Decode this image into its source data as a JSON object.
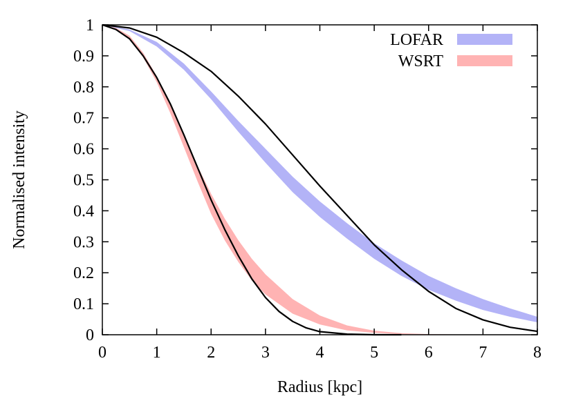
{
  "chart_data": {
    "type": "area",
    "xlabel": "Radius [kpc]",
    "ylabel": "Normalised intensity",
    "xlim": [
      0,
      8
    ],
    "ylim": [
      0,
      1
    ],
    "x_ticks": [
      "0",
      "1",
      "2",
      "3",
      "4",
      "5",
      "6",
      "7",
      "8"
    ],
    "y_ticks": [
      "0",
      "0.1",
      "0.2",
      "0.3",
      "0.4",
      "0.5",
      "0.6",
      "0.7",
      "0.8",
      "0.9",
      "1"
    ],
    "grid": false,
    "legend_position": "top-right",
    "series": [
      {
        "name": "LOFAR",
        "kind": "band",
        "color": "#b3b3f7",
        "x": [
          0,
          0.5,
          1,
          1.5,
          2,
          2.5,
          3,
          3.5,
          4,
          4.5,
          5,
          5.5,
          6,
          6.5,
          7,
          7.5,
          8
        ],
        "lower": [
          1,
          0.98,
          0.93,
          0.855,
          0.76,
          0.655,
          0.555,
          0.46,
          0.38,
          0.31,
          0.245,
          0.19,
          0.145,
          0.11,
          0.08,
          0.058,
          0.04
        ],
        "upper": [
          1,
          0.985,
          0.945,
          0.875,
          0.785,
          0.69,
          0.6,
          0.51,
          0.43,
          0.36,
          0.295,
          0.24,
          0.19,
          0.15,
          0.115,
          0.085,
          0.058
        ]
      },
      {
        "name": "WSRT",
        "kind": "band",
        "color": "#ffb3b3",
        "x": [
          0,
          0.25,
          0.5,
          0.75,
          1,
          1.25,
          1.5,
          1.75,
          2,
          2.25,
          2.5,
          2.75,
          3,
          3.5,
          4,
          4.5,
          5,
          5.5,
          6,
          6.5
        ],
        "lower": [
          1,
          0.985,
          0.955,
          0.895,
          0.815,
          0.715,
          0.605,
          0.495,
          0.39,
          0.305,
          0.235,
          0.175,
          0.13,
          0.068,
          0.033,
          0.014,
          0.006,
          0.002,
          0.001,
          0
        ],
        "upper": [
          1,
          0.99,
          0.965,
          0.91,
          0.835,
          0.745,
          0.645,
          0.545,
          0.455,
          0.375,
          0.305,
          0.245,
          0.195,
          0.115,
          0.062,
          0.03,
          0.013,
          0.005,
          0.002,
          0.001
        ]
      },
      {
        "kind": "line",
        "color": "#000000",
        "x": [
          0,
          0.5,
          1,
          1.5,
          2,
          2.5,
          3,
          3.5,
          4,
          4.5,
          5,
          5.5,
          6,
          6.5,
          7,
          7.5,
          8
        ],
        "y": [
          1,
          0.99,
          0.96,
          0.91,
          0.85,
          0.77,
          0.68,
          0.58,
          0.48,
          0.385,
          0.29,
          0.21,
          0.14,
          0.085,
          0.048,
          0.024,
          0.011
        ]
      },
      {
        "kind": "line",
        "color": "#000000",
        "x": [
          0,
          0.25,
          0.5,
          0.75,
          1,
          1.25,
          1.5,
          1.75,
          2,
          2.25,
          2.5,
          2.75,
          3,
          3.25,
          3.5,
          3.75,
          4,
          4.5,
          5,
          5.5
        ],
        "y": [
          1,
          0.985,
          0.955,
          0.9,
          0.83,
          0.745,
          0.645,
          0.54,
          0.435,
          0.34,
          0.255,
          0.18,
          0.12,
          0.075,
          0.043,
          0.022,
          0.01,
          0.002,
          0,
          0
        ]
      }
    ]
  }
}
